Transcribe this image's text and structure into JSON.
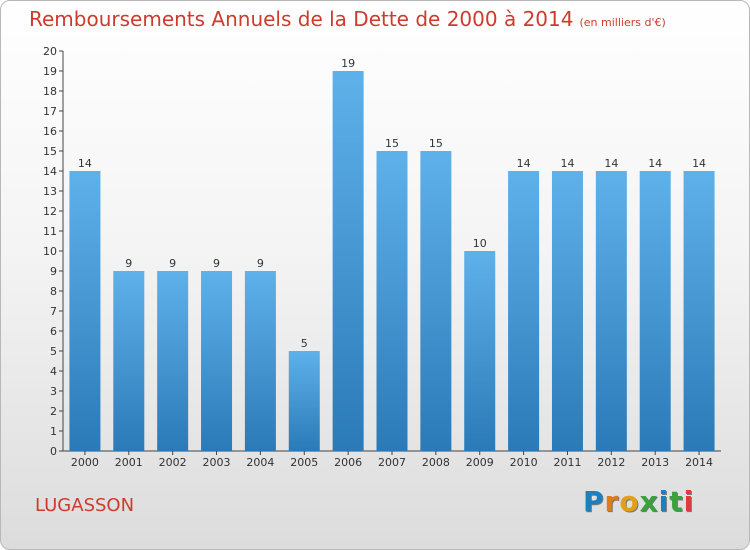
{
  "header": {
    "title": "Remboursements Annuels de la Dette de 2000 à 2014",
    "unit": "(en milliers d'€)"
  },
  "footer": {
    "commune": "LUGASSON",
    "brand": "Proxiti"
  },
  "colors": {
    "bar_light": "#5fb1ea",
    "bar_dark": "#2b7ab8",
    "title": "#cc3b2e"
  },
  "chart_data": {
    "type": "bar",
    "title": "Remboursements Annuels de la Dette de 2000 à 2014",
    "ylabel": "en milliers d'€",
    "xlabel": "",
    "ylim": [
      0,
      20
    ],
    "yticks": [
      "0",
      "1",
      "2",
      "3",
      "4",
      "5",
      "6",
      "7",
      "8",
      "9",
      "10",
      "11",
      "12",
      "13",
      "14",
      "15",
      "16",
      "17",
      "18",
      "19",
      "20"
    ],
    "categories": [
      "2000",
      "2001",
      "2002",
      "2003",
      "2004",
      "2005",
      "2006",
      "2007",
      "2008",
      "2009",
      "2010",
      "2011",
      "2012",
      "2013",
      "2014"
    ],
    "values": [
      14,
      9,
      9,
      9,
      9,
      5,
      19,
      15,
      15,
      10,
      14,
      14,
      14,
      14,
      14
    ],
    "value_labels": [
      "14",
      "9",
      "9",
      "9",
      "9",
      "5",
      "19",
      "15",
      "15",
      "10",
      "14",
      "14",
      "14",
      "14",
      "14"
    ],
    "grid": false
  }
}
